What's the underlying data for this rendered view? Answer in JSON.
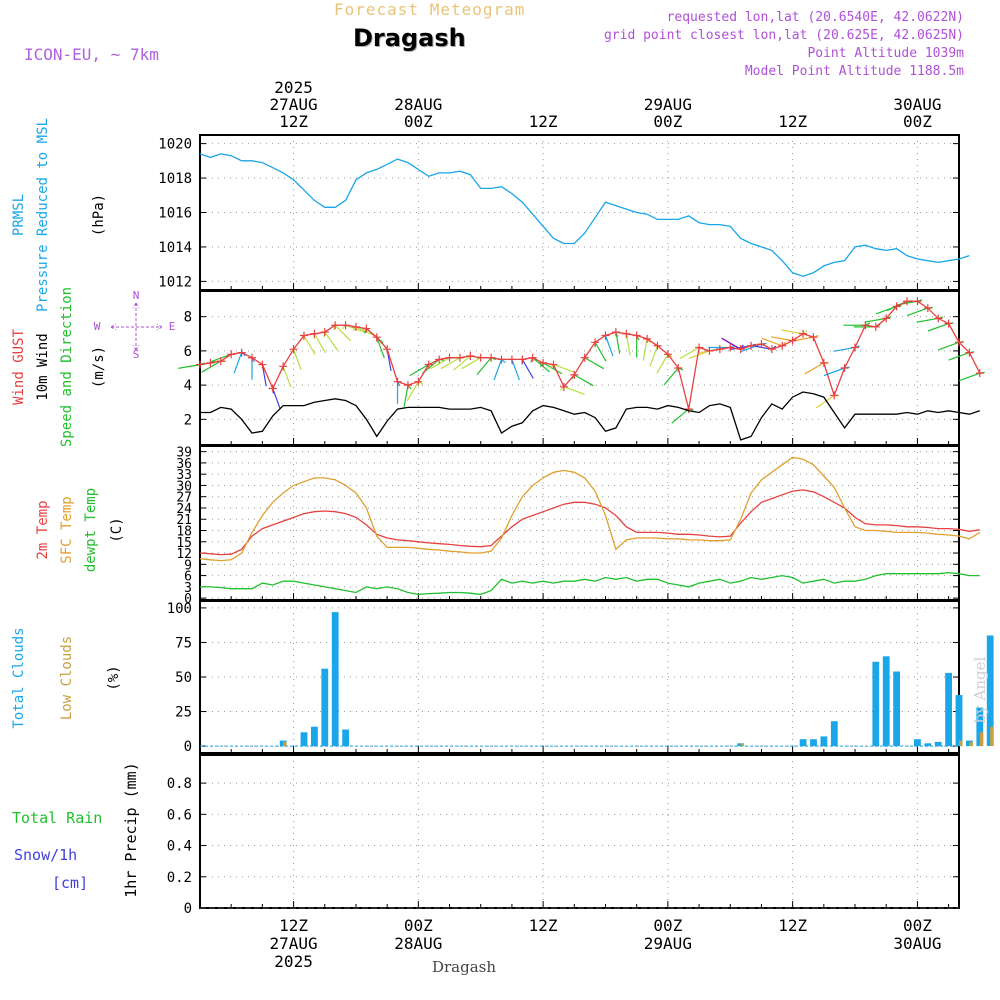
{
  "header": {
    "product": "Forecast Meteogram",
    "place": "Dragash",
    "model": "ICON-EU, ~ 7km",
    "meta_lines": [
      "requested lon,lat (20.6540E, 42.0622N)",
      "grid point closest lon,lat (20.625E, 42.0625N)",
      "Point Altitude 1039m",
      "Model Point Altitude 1188.5m"
    ]
  },
  "footer_place": "Dragash",
  "watermark": "by Angel",
  "colors": {
    "pressure": "#1aa6e8",
    "gust": "#e84040",
    "wind": "#000000",
    "windbarb": "#22c02e",
    "temp2m": "#e84040",
    "sfctemp": "#e0a030",
    "dewpt": "#22c02e",
    "total_clouds": "#1aa6e8",
    "low_clouds": "#c8a040",
    "rain": "#22c02e",
    "snow": "#4040e0",
    "purple": "#b050d8"
  },
  "time_axis": {
    "top_labels": [
      {
        "hour": 12,
        "lines": [
          "2025",
          "27AUG",
          "12Z"
        ]
      },
      {
        "hour": 24,
        "lines": [
          "28AUG",
          "00Z"
        ]
      },
      {
        "hour": 36,
        "lines": [
          "12Z"
        ]
      },
      {
        "hour": 48,
        "lines": [
          "29AUG",
          "00Z"
        ]
      },
      {
        "hour": 60,
        "lines": [
          "12Z"
        ]
      },
      {
        "hour": 72,
        "lines": [
          "30AUG",
          "00Z"
        ]
      }
    ],
    "bottom_labels": [
      {
        "hour": 12,
        "lines": [
          "12Z",
          "27AUG",
          "2025"
        ]
      },
      {
        "hour": 24,
        "lines": [
          "00Z",
          "28AUG"
        ]
      },
      {
        "hour": 36,
        "lines": [
          "12Z"
        ]
      },
      {
        "hour": 48,
        "lines": [
          "00Z",
          "29AUG"
        ]
      },
      {
        "hour": 60,
        "lines": [
          "12Z"
        ]
      },
      {
        "hour": 72,
        "lines": [
          "00Z",
          "30AUG"
        ]
      }
    ]
  },
  "chart_data": [
    {
      "type": "line",
      "panel": "pressure",
      "ylabel_lines": [
        {
          "text": "PRMSL",
          "color": "pressure"
        },
        {
          "text": "Pressure Reduced to MSL",
          "color": "pressure"
        },
        {
          "text": "(hPa)",
          "color": "wind"
        }
      ],
      "ylim": [
        1011.5,
        1020.5
      ],
      "yticks": [
        1012,
        1014,
        1016,
        1018,
        1020
      ],
      "series": [
        {
          "color": "pressure",
          "values": [
            1019.4,
            1019.2,
            1019.4,
            1019.3,
            1019.0,
            1019.0,
            1018.9,
            1018.6,
            1018.3,
            1017.9,
            1017.3,
            1016.7,
            1016.3,
            1016.3,
            1016.7,
            1017.9,
            1018.3,
            1018.5,
            1018.8,
            1019.1,
            1018.9,
            1018.5,
            1018.1,
            1018.3,
            1018.3,
            1018.4,
            1018.2,
            1017.4,
            1017.4,
            1017.5,
            1017.1,
            1016.6,
            1015.9,
            1015.2,
            1014.5,
            1014.2,
            1014.2,
            1014.8,
            1015.7,
            1016.6,
            1016.4,
            1016.2,
            1016.0,
            1015.9,
            1015.6,
            1015.6,
            1015.6,
            1015.8,
            1015.4,
            1015.3,
            1015.3,
            1015.2,
            1014.5,
            1014.2,
            1014.0,
            1013.8,
            1013.2,
            1012.5,
            1012.3,
            1012.5,
            1012.9,
            1013.1,
            1013.2,
            1014.0,
            1014.1,
            1013.9,
            1013.8,
            1013.9,
            1013.5,
            1013.3,
            1013.2,
            1013.1,
            1013.2,
            1013.3,
            1013.5
          ]
        }
      ]
    },
    {
      "type": "line",
      "panel": "wind",
      "ylabel_lines": [
        {
          "text": "Wind GUST",
          "color": "gust"
        },
        {
          "text": "10m Wind",
          "color": "wind"
        },
        {
          "text": "Speed and Direction",
          "color": "windbarb"
        },
        {
          "text": "(m/s)",
          "color": "wind"
        }
      ],
      "compass": {
        "n": "N",
        "s": "S",
        "w": "W",
        "e": "E"
      },
      "ylim": [
        0.5,
        9.5
      ],
      "yticks": [
        2,
        4,
        6,
        8
      ],
      "series": [
        {
          "name": "gust",
          "color": "gust",
          "marker": "+",
          "values": [
            5.2,
            5.3,
            5.4,
            5.8,
            5.9,
            5.6,
            5.2,
            3.8,
            5.1,
            6.1,
            6.9,
            7.0,
            7.1,
            7.5,
            7.5,
            7.4,
            7.3,
            6.8,
            6.1,
            4.2,
            4.0,
            4.2,
            5.2,
            5.5,
            5.6,
            5.6,
            5.7,
            5.6,
            5.6,
            5.5,
            5.5,
            5.5,
            5.6,
            5.3,
            5.2,
            3.9,
            4.6,
            5.6,
            6.5,
            6.9,
            7.1,
            7.0,
            6.9,
            6.7,
            6.3,
            5.8,
            5.0,
            2.6,
            6.2,
            6.0,
            6.1,
            6.2,
            6.1,
            6.3,
            6.4,
            6.1,
            6.3,
            6.6,
            7.0,
            6.8,
            5.3,
            3.4,
            5.0,
            6.2,
            7.5,
            7.4,
            7.9,
            8.6,
            8.9,
            8.9,
            8.5,
            7.9,
            7.6,
            6.5,
            5.9,
            4.7
          ]
        },
        {
          "name": "wind",
          "color": "wind",
          "values": [
            2.4,
            2.4,
            2.7,
            2.6,
            2.0,
            1.2,
            1.3,
            2.2,
            2.8,
            2.8,
            2.8,
            3.0,
            3.1,
            3.2,
            3.1,
            2.8,
            2.0,
            1.0,
            1.9,
            2.6,
            2.7,
            2.7,
            2.7,
            2.7,
            2.6,
            2.6,
            2.6,
            2.7,
            2.5,
            1.2,
            1.6,
            1.8,
            2.5,
            2.8,
            2.7,
            2.5,
            2.3,
            2.4,
            2.1,
            1.3,
            1.5,
            2.6,
            2.7,
            2.7,
            2.6,
            2.8,
            2.7,
            2.5,
            2.4,
            2.8,
            2.9,
            2.7,
            0.8,
            1.0,
            2.1,
            2.9,
            2.6,
            3.3,
            3.6,
            3.5,
            3.3,
            2.4,
            1.5,
            2.3,
            2.3,
            2.3,
            2.3,
            2.3,
            2.4,
            2.3,
            2.5,
            2.4,
            2.5,
            2.4,
            2.3,
            2.5
          ]
        }
      ],
      "barb_dirs": [
        100,
        100,
        120,
        110,
        160,
        180,
        190,
        200,
        200,
        200,
        210,
        210,
        215,
        225,
        250,
        245,
        230,
        200,
        190,
        180,
        170,
        150,
        120,
        130,
        120,
        120,
        130,
        120,
        140,
        160,
        200,
        210,
        230,
        240,
        250,
        250,
        240,
        240,
        210,
        200,
        190,
        190,
        180,
        170,
        160,
        150,
        140,
        130,
        120,
        110,
        100,
        90,
        60,
        100,
        110,
        80,
        70,
        80,
        80,
        100,
        120,
        125,
        110,
        100,
        90,
        90,
        100,
        110,
        115,
        100,
        110,
        100,
        110,
        110,
        110,
        110
      ],
      "barb_colors": [
        "#22c02e",
        "#22c02e",
        "#22c02e",
        "#22c02e",
        "#1aa6e8",
        "#1aa6e8",
        "#4040e0",
        "#4040e0",
        "#b4e040",
        "#b4e040",
        "#b4e040",
        "#b4e040",
        "#b4e040",
        "#b4e040",
        "#b4e040",
        "#b4e040",
        "#22c02e",
        "#22c02e",
        "#4040e0",
        "#1aa6e8",
        "#22c02e",
        "#b4e040",
        "#22c02e",
        "#22c02e",
        "#b4e040",
        "#b4e040",
        "#b4e040",
        "#b4e040",
        "#22c02e",
        "#1aa6e8",
        "#1aa6e8",
        "#4040e0",
        "#22c02e",
        "#22c02e",
        "#b4e040",
        "#b4e040",
        "#22c02e",
        "#22c02e",
        "#22c02e",
        "#1aa6e8",
        "#22c02e",
        "#b4e040",
        "#22c02e",
        "#b4e040",
        "#b4e040",
        "#b4e040",
        "#22c02e",
        "#22c02e",
        "#b4e040",
        "#e0d040",
        "#e0d040",
        "#1aa6e8",
        "#8000c0",
        "#4040e0",
        "#1aa6e8",
        "#4040e0",
        "#f0a020",
        "#f0a020",
        "#e0d040",
        "#f0a020",
        "#f0a020",
        "#e0d040",
        "#1aa6e8",
        "#1aa6e8",
        "#22c02e",
        "#22c02e",
        "#22c02e",
        "#22c02e",
        "#22c02e",
        "#22c02e",
        "#22c02e",
        "#22c02e",
        "#22c02e",
        "#22c02e",
        "#22c02e",
        "#22c02e"
      ]
    },
    {
      "type": "line",
      "panel": "temperature",
      "ylabel_lines": [
        {
          "text": "2m Temp",
          "color": "temp2m"
        },
        {
          "text": "SFC Temp",
          "color": "sfctemp"
        },
        {
          "text": "dewpt Temp",
          "color": "dewpt"
        },
        {
          "text": "(C)",
          "color": "wind"
        }
      ],
      "ylim": [
        -0.5,
        40.5
      ],
      "yticks": [
        0,
        3,
        6,
        9,
        12,
        15,
        18,
        21,
        24,
        27,
        30,
        33,
        36,
        39
      ],
      "series": [
        {
          "name": "2m Temp",
          "color": "temp2m",
          "values": [
            12.0,
            11.8,
            11.6,
            11.7,
            13.0,
            16.5,
            18.5,
            19.5,
            20.5,
            21.5,
            22.5,
            23.0,
            23.2,
            23.0,
            22.5,
            21.5,
            19.5,
            17.0,
            16.0,
            15.5,
            15.3,
            15.0,
            14.7,
            14.5,
            14.3,
            14.0,
            13.8,
            13.7,
            14.0,
            16.5,
            19.0,
            21.0,
            22.0,
            23.0,
            24.0,
            25.0,
            25.5,
            25.5,
            25.0,
            24.0,
            22.0,
            19.0,
            17.5,
            17.5,
            17.5,
            17.3,
            17.0,
            17.0,
            16.8,
            16.5,
            16.3,
            16.5,
            20.0,
            23.0,
            25.5,
            26.5,
            27.5,
            28.5,
            28.8,
            28.3,
            27.0,
            25.5,
            24.0,
            21.5,
            19.8,
            19.5,
            19.5,
            19.3,
            19.0,
            19.0,
            18.8,
            18.5,
            18.5,
            18.3,
            17.8,
            18.2
          ]
        },
        {
          "name": "SFC Temp",
          "color": "sfctemp",
          "values": [
            10.5,
            10.2,
            10.0,
            10.2,
            12.0,
            17.5,
            22.0,
            25.5,
            28.0,
            30.0,
            31.0,
            32.0,
            32.0,
            31.5,
            30.0,
            28.0,
            24.0,
            16.5,
            13.5,
            13.5,
            13.5,
            13.3,
            13.0,
            12.8,
            12.5,
            12.3,
            12.0,
            12.0,
            12.5,
            16.0,
            22.0,
            27.0,
            30.0,
            32.0,
            33.5,
            34.0,
            33.5,
            32.0,
            28.5,
            22.0,
            13.0,
            15.5,
            16.0,
            16.0,
            16.0,
            15.8,
            15.8,
            15.5,
            15.5,
            15.3,
            15.3,
            15.5,
            21.0,
            28.0,
            31.5,
            33.5,
            35.5,
            37.5,
            37.0,
            35.5,
            32.5,
            29.5,
            24.0,
            19.0,
            18.0,
            18.0,
            17.8,
            17.5,
            17.5,
            17.5,
            17.3,
            17.0,
            16.8,
            16.5,
            15.8,
            17.5
          ]
        },
        {
          "name": "dewpt Temp",
          "color": "dewpt",
          "values": [
            3.0,
            3.0,
            2.8,
            2.5,
            2.5,
            2.5,
            4.0,
            3.5,
            4.5,
            4.5,
            4.0,
            3.5,
            3.0,
            2.5,
            2.0,
            1.5,
            3.0,
            2.5,
            3.0,
            2.5,
            1.5,
            1.0,
            1.2,
            1.3,
            1.5,
            1.5,
            1.3,
            1.0,
            2.0,
            5.0,
            4.0,
            4.5,
            4.0,
            4.5,
            4.0,
            4.5,
            4.5,
            5.0,
            4.5,
            5.5,
            5.0,
            5.5,
            4.5,
            5.0,
            5.0,
            4.0,
            3.5,
            3.0,
            4.0,
            4.5,
            5.0,
            4.0,
            4.5,
            5.5,
            5.0,
            5.5,
            6.0,
            5.5,
            4.0,
            4.5,
            5.0,
            4.0,
            4.5,
            4.5,
            5.0,
            6.0,
            6.5,
            6.5,
            6.5,
            6.5,
            6.5,
            6.5,
            6.8,
            6.5,
            6.0,
            6.0
          ]
        }
      ]
    },
    {
      "type": "bar",
      "panel": "clouds",
      "ylabel_lines": [
        {
          "text": "Total Clouds",
          "color": "total_clouds"
        },
        {
          "text": "Low Clouds",
          "color": "low_clouds"
        },
        {
          "text": "(%)",
          "color": "wind"
        }
      ],
      "ylim": [
        -5,
        105
      ],
      "yticks": [
        0,
        25,
        50,
        75,
        100
      ],
      "series": [
        {
          "name": "Total Clouds",
          "color": "total_clouds",
          "values": [
            0,
            0,
            0,
            0,
            0,
            0,
            0,
            0,
            4,
            0,
            10,
            14,
            56,
            97,
            12,
            0,
            0,
            0,
            0,
            0,
            0,
            0,
            0,
            0,
            0,
            0,
            0,
            0,
            0,
            0,
            0,
            0,
            0,
            0,
            0,
            0,
            0,
            0,
            0,
            0,
            0,
            0,
            0,
            0,
            0,
            0,
            0,
            0,
            0,
            0,
            0,
            0,
            2,
            0,
            0,
            0,
            0,
            0,
            5,
            5,
            7,
            18,
            0,
            0,
            0,
            61,
            65,
            54,
            0,
            5,
            2,
            3,
            53,
            37,
            4,
            28,
            80
          ]
        },
        {
          "name": "Low Clouds",
          "color": "low_clouds",
          "values": [
            0,
            0,
            0,
            0,
            0,
            0,
            0,
            0,
            3,
            0,
            0,
            0,
            0,
            0,
            0,
            0,
            0,
            0,
            0,
            0,
            0,
            0,
            0,
            0,
            0,
            0,
            0,
            0,
            0,
            0,
            0,
            0,
            0,
            0,
            0,
            0,
            0,
            0,
            0,
            0,
            0,
            0,
            0,
            0,
            0,
            0,
            0,
            0,
            0,
            0,
            0,
            0,
            2,
            0,
            0,
            0,
            0,
            0,
            0,
            0,
            0,
            0,
            0,
            0,
            0,
            0,
            0,
            0,
            0,
            0,
            0,
            0,
            0,
            4,
            3,
            10,
            14
          ]
        }
      ]
    },
    {
      "type": "bar",
      "panel": "precip",
      "side_labels": [
        {
          "text": "Total  Rain",
          "color": "rain"
        },
        {
          "text": "Snow/1h",
          "color": "snow"
        },
        {
          "text": "[cm]",
          "color": "snow"
        }
      ],
      "ylabel": "1hr Precip (mm)",
      "ylim": [
        0,
        0.98
      ],
      "yticks": [
        0,
        0.2,
        0.4,
        0.6,
        0.8
      ],
      "series": [
        {
          "name": "Total Rain",
          "color": "rain",
          "values": []
        },
        {
          "name": "Snow/1h",
          "color": "snow",
          "values": []
        }
      ]
    }
  ]
}
